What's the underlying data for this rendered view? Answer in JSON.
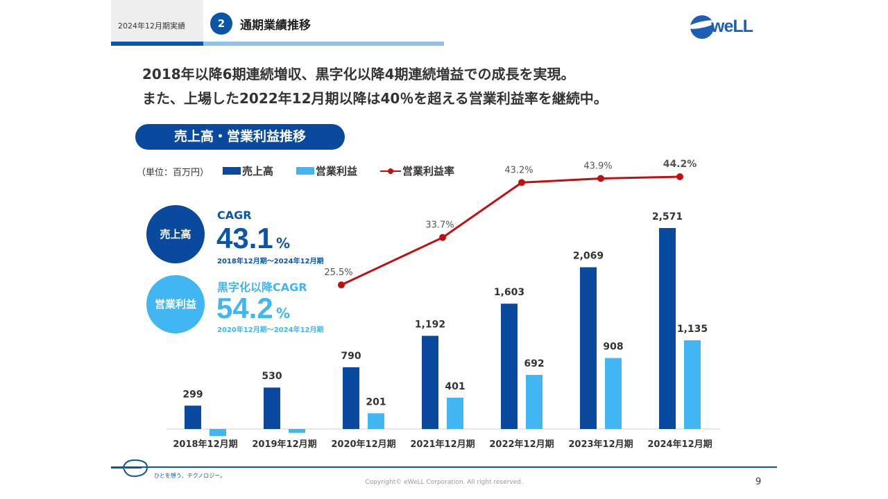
{
  "header": {
    "period": "2024年12月期実績",
    "section_number": "2",
    "section_title": "通期業績推移",
    "logo_text": "weLL"
  },
  "headline": {
    "line1": "2018年以降6期連続増収、黒字化以降4期連続増益での成長を実現。",
    "line2": "また、上場した2022年12月期以降は40％を超える営業利益率を継続中。"
  },
  "section_pill": "売上高・営業利益推移",
  "legend": {
    "unit": "（単位：百万円）",
    "revenue": "売上高",
    "operating_profit": "営業利益",
    "margin": "営業利益率"
  },
  "cagr": {
    "revenue": {
      "circle_label": "売上高",
      "label": "CAGR",
      "value": "43.1",
      "unit": "%",
      "period": "2018年12月期～2024年12月期"
    },
    "profit": {
      "circle_label": "営業利益",
      "label": "黒字化以降CAGR",
      "value": "54.2",
      "unit": "%",
      "period": "2020年12月期～2024年12月期"
    }
  },
  "colors": {
    "revenue": "#0a4a9e",
    "operating_profit": "#41b6f2",
    "margin": "#c00f0f",
    "brand": "#0a55a8"
  },
  "chart_data": {
    "type": "bar",
    "categories": [
      "2018年12月期",
      "2019年12月期",
      "2020年12月期",
      "2021年12月期",
      "2022年12月期",
      "2023年12月期",
      "2024年12月期"
    ],
    "series": [
      {
        "name": "売上高",
        "values": [
          299,
          530,
          790,
          1192,
          1603,
          2069,
          2571
        ],
        "labels": [
          "299",
          "530",
          "790",
          "1,192",
          "1,603",
          "2,069",
          "2,571"
        ]
      },
      {
        "name": "営業利益",
        "values": [
          -90,
          -50,
          201,
          401,
          692,
          908,
          1135
        ],
        "labels": [
          "",
          "",
          "201",
          "401",
          "692",
          "908",
          "1,135"
        ]
      },
      {
        "name": "営業利益率",
        "type": "line",
        "values": [
          null,
          null,
          25.5,
          33.7,
          43.2,
          43.9,
          44.2
        ],
        "labels": [
          "",
          "",
          "25.5%",
          "33.7%",
          "43.2%",
          "43.9%",
          "44.2%"
        ]
      }
    ],
    "unit": "百万円"
  },
  "footer": {
    "tagline": "ひとを想う、テクノロジー。",
    "copyright": "Copyright© eWeLL Corporation. All right reserved.",
    "page": "9"
  }
}
